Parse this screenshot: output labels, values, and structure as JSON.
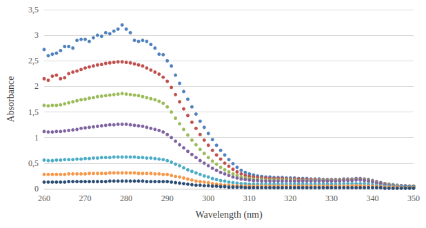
{
  "chart_data": {
    "type": "scatter",
    "x_label": "Wavelength (nm)",
    "y_label": "Absorbance",
    "xlim": [
      260,
      350
    ],
    "xticks": [
      260,
      270,
      280,
      290,
      300,
      310,
      320,
      330,
      340,
      350
    ],
    "ylim": [
      0,
      3.5
    ],
    "yticks": [
      0,
      {
        "value": 0.5,
        "label": "0,5"
      },
      1,
      {
        "value": 1.5,
        "label": "1,5"
      },
      2,
      {
        "value": 2.5,
        "label": "2,5"
      },
      3,
      {
        "value": 3.5,
        "label": "3,5"
      }
    ],
    "grid": true,
    "marker": "circle",
    "x": [
      260,
      261,
      262,
      263,
      264,
      265,
      266,
      267,
      268,
      269,
      270,
      271,
      272,
      273,
      274,
      275,
      276,
      277,
      278,
      279,
      280,
      281,
      282,
      283,
      284,
      285,
      286,
      287,
      288,
      289,
      290,
      291,
      292,
      293,
      294,
      295,
      296,
      297,
      298,
      299,
      300,
      301,
      302,
      303,
      304,
      305,
      306,
      307,
      308,
      309,
      310,
      311,
      312,
      313,
      314,
      315,
      316,
      317,
      318,
      319,
      320,
      321,
      322,
      323,
      324,
      325,
      326,
      327,
      328,
      329,
      330,
      331,
      332,
      333,
      334,
      335,
      336,
      337,
      338,
      339,
      340,
      341,
      342,
      343,
      344,
      345,
      346,
      347,
      348,
      349,
      350
    ],
    "series": [
      {
        "color": "#4F81BD",
        "values": [
          2.72,
          2.6,
          2.63,
          2.65,
          2.7,
          2.78,
          2.78,
          2.75,
          2.9,
          2.92,
          2.92,
          2.88,
          2.95,
          3.0,
          2.98,
          3.05,
          3.03,
          3.08,
          3.12,
          3.2,
          3.12,
          3.05,
          2.9,
          2.88,
          2.9,
          2.88,
          2.82,
          2.75,
          2.63,
          2.62,
          2.5,
          2.4,
          2.22,
          2.06,
          1.9,
          1.75,
          1.6,
          1.46,
          1.32,
          1.2,
          1.08,
          0.96,
          0.85,
          0.75,
          0.66,
          0.57,
          0.49,
          0.42,
          0.36,
          0.32,
          0.29,
          0.27,
          0.25,
          0.24,
          0.23,
          0.23,
          0.22,
          0.22,
          0.22,
          0.21,
          0.21,
          0.21,
          0.2,
          0.2,
          0.2,
          0.19,
          0.19,
          0.19,
          0.18,
          0.18,
          0.18,
          0.18,
          0.18,
          0.19,
          0.19,
          0.19,
          0.2,
          0.2,
          0.19,
          0.18,
          0.16,
          0.14,
          0.12,
          0.1,
          0.09,
          0.08,
          0.07,
          0.06,
          0.06,
          0.05,
          0.05
        ]
      },
      {
        "color": "#C0504D",
        "values": [
          2.15,
          2.12,
          2.2,
          2.22,
          2.15,
          2.17,
          2.25,
          2.28,
          2.3,
          2.33,
          2.36,
          2.38,
          2.4,
          2.42,
          2.43,
          2.45,
          2.46,
          2.47,
          2.48,
          2.48,
          2.47,
          2.46,
          2.44,
          2.42,
          2.4,
          2.36,
          2.32,
          2.28,
          2.24,
          2.18,
          2.1,
          1.98,
          1.84,
          1.7,
          1.56,
          1.43,
          1.3,
          1.18,
          1.06,
          0.95,
          0.85,
          0.75,
          0.66,
          0.58,
          0.5,
          0.44,
          0.38,
          0.33,
          0.29,
          0.26,
          0.24,
          0.23,
          0.22,
          0.21,
          0.21,
          0.2,
          0.2,
          0.2,
          0.2,
          0.19,
          0.19,
          0.19,
          0.19,
          0.18,
          0.18,
          0.18,
          0.18,
          0.17,
          0.17,
          0.17,
          0.17,
          0.17,
          0.17,
          0.18,
          0.18,
          0.18,
          0.19,
          0.19,
          0.18,
          0.17,
          0.15,
          0.13,
          0.11,
          0.1,
          0.08,
          0.07,
          0.06,
          0.06,
          0.05,
          0.05,
          0.05
        ]
      },
      {
        "color": "#9BBB59",
        "values": [
          1.63,
          1.62,
          1.63,
          1.63,
          1.64,
          1.66,
          1.68,
          1.7,
          1.72,
          1.74,
          1.75,
          1.77,
          1.78,
          1.8,
          1.81,
          1.82,
          1.83,
          1.84,
          1.85,
          1.86,
          1.85,
          1.84,
          1.83,
          1.82,
          1.8,
          1.78,
          1.76,
          1.74,
          1.71,
          1.67,
          1.6,
          1.5,
          1.38,
          1.27,
          1.16,
          1.05,
          0.95,
          0.86,
          0.77,
          0.69,
          0.61,
          0.54,
          0.48,
          0.42,
          0.37,
          0.33,
          0.29,
          0.26,
          0.23,
          0.21,
          0.2,
          0.19,
          0.18,
          0.18,
          0.17,
          0.17,
          0.17,
          0.17,
          0.17,
          0.17,
          0.17,
          0.17,
          0.16,
          0.16,
          0.16,
          0.16,
          0.16,
          0.16,
          0.16,
          0.16,
          0.16,
          0.16,
          0.16,
          0.17,
          0.17,
          0.17,
          0.18,
          0.18,
          0.17,
          0.16,
          0.14,
          0.12,
          0.1,
          0.09,
          0.08,
          0.07,
          0.06,
          0.05,
          0.05,
          0.05,
          0.05
        ]
      },
      {
        "color": "#8064A2",
        "values": [
          1.12,
          1.11,
          1.11,
          1.12,
          1.12,
          1.13,
          1.14,
          1.15,
          1.16,
          1.18,
          1.19,
          1.2,
          1.21,
          1.22,
          1.23,
          1.24,
          1.25,
          1.25,
          1.26,
          1.26,
          1.26,
          1.25,
          1.24,
          1.23,
          1.22,
          1.2,
          1.18,
          1.16,
          1.14,
          1.11,
          1.06,
          1.0,
          0.93,
          0.86,
          0.8,
          0.73,
          0.67,
          0.61,
          0.55,
          0.5,
          0.45,
          0.4,
          0.36,
          0.32,
          0.29,
          0.26,
          0.23,
          0.21,
          0.19,
          0.18,
          0.17,
          0.16,
          0.16,
          0.15,
          0.15,
          0.15,
          0.15,
          0.15,
          0.15,
          0.15,
          0.15,
          0.15,
          0.15,
          0.15,
          0.15,
          0.15,
          0.15,
          0.15,
          0.15,
          0.15,
          0.15,
          0.15,
          0.15,
          0.16,
          0.16,
          0.16,
          0.17,
          0.17,
          0.16,
          0.15,
          0.13,
          0.11,
          0.1,
          0.08,
          0.07,
          0.06,
          0.05,
          0.05,
          0.05,
          0.04,
          0.04
        ]
      },
      {
        "color": "#4BACC6",
        "values": [
          0.56,
          0.55,
          0.55,
          0.56,
          0.56,
          0.57,
          0.57,
          0.57,
          0.58,
          0.58,
          0.59,
          0.59,
          0.6,
          0.6,
          0.61,
          0.61,
          0.61,
          0.62,
          0.62,
          0.62,
          0.62,
          0.62,
          0.62,
          0.61,
          0.61,
          0.6,
          0.6,
          0.59,
          0.58,
          0.57,
          0.55,
          0.52,
          0.48,
          0.45,
          0.41,
          0.37,
          0.34,
          0.31,
          0.28,
          0.25,
          0.23,
          0.2,
          0.18,
          0.16,
          0.15,
          0.13,
          0.12,
          0.11,
          0.1,
          0.1,
          0.09,
          0.09,
          0.09,
          0.09,
          0.09,
          0.09,
          0.09,
          0.09,
          0.09,
          0.09,
          0.09,
          0.09,
          0.09,
          0.09,
          0.09,
          0.09,
          0.09,
          0.09,
          0.09,
          0.09,
          0.09,
          0.09,
          0.09,
          0.1,
          0.1,
          0.1,
          0.1,
          0.1,
          0.1,
          0.09,
          0.08,
          0.07,
          0.06,
          0.05,
          0.05,
          0.04,
          0.04,
          0.04,
          0.03,
          0.03,
          0.03
        ]
      },
      {
        "color": "#F79646",
        "values": [
          0.28,
          0.28,
          0.28,
          0.28,
          0.28,
          0.28,
          0.29,
          0.29,
          0.29,
          0.29,
          0.29,
          0.3,
          0.3,
          0.3,
          0.3,
          0.3,
          0.31,
          0.31,
          0.31,
          0.31,
          0.31,
          0.31,
          0.31,
          0.3,
          0.3,
          0.3,
          0.3,
          0.29,
          0.29,
          0.28,
          0.28,
          0.26,
          0.24,
          0.23,
          0.21,
          0.19,
          0.17,
          0.15,
          0.14,
          0.13,
          0.12,
          0.1,
          0.09,
          0.08,
          0.07,
          0.07,
          0.06,
          0.06,
          0.05,
          0.05,
          0.05,
          0.05,
          0.05,
          0.05,
          0.05,
          0.05,
          0.05,
          0.05,
          0.05,
          0.05,
          0.05,
          0.05,
          0.05,
          0.05,
          0.05,
          0.05,
          0.05,
          0.05,
          0.05,
          0.05,
          0.05,
          0.05,
          0.05,
          0.05,
          0.05,
          0.06,
          0.06,
          0.06,
          0.05,
          0.05,
          0.05,
          0.04,
          0.04,
          0.03,
          0.03,
          0.03,
          0.03,
          0.02,
          0.02,
          0.02,
          0.02
        ]
      },
      {
        "color": "#2C4D75",
        "values": [
          0.13,
          0.13,
          0.13,
          0.13,
          0.13,
          0.13,
          0.14,
          0.14,
          0.14,
          0.14,
          0.14,
          0.14,
          0.14,
          0.14,
          0.14,
          0.14,
          0.15,
          0.15,
          0.15,
          0.15,
          0.15,
          0.15,
          0.15,
          0.15,
          0.15,
          0.14,
          0.14,
          0.14,
          0.14,
          0.14,
          0.14,
          0.13,
          0.12,
          0.11,
          0.1,
          0.09,
          0.08,
          0.07,
          0.07,
          0.06,
          0.06,
          0.05,
          0.05,
          0.04,
          0.04,
          0.03,
          0.03,
          0.03,
          0.03,
          0.02,
          0.02,
          0.02,
          0.02,
          0.02,
          0.02,
          0.02,
          0.02,
          0.02,
          0.02,
          0.02,
          0.02,
          0.02,
          0.02,
          0.02,
          0.02,
          0.02,
          0.02,
          0.02,
          0.02,
          0.02,
          0.02,
          0.02,
          0.02,
          0.02,
          0.02,
          0.02,
          0.02,
          0.02,
          0.02,
          0.02,
          0.02,
          0.02,
          0.02,
          0.01,
          0.01,
          0.01,
          0.01,
          0.01,
          0.01,
          0.01,
          0.01
        ]
      }
    ]
  }
}
